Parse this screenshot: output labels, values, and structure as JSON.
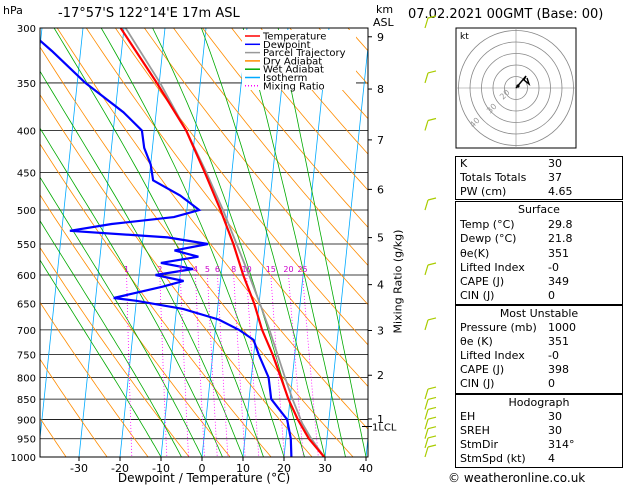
{
  "header": {
    "pressure_unit": "hPa",
    "location": "-17°57'S 122°14'E 17m ASL",
    "height_unit": "km",
    "height_ref": "ASL",
    "datetime": "07.02.2021 00GMT (Base: 00)"
  },
  "legend": [
    "Temperature",
    "Dewpoint",
    "Parcel Trajectory",
    "Dry Adiabat",
    "Wet Adiabat",
    "Isotherm",
    "Mixing Ratio"
  ],
  "legend_colors": [
    "#ff0000",
    "#0000ff",
    "#999999",
    "#ff8c00",
    "#00aa00",
    "#00aaff",
    "#ff00ff"
  ],
  "right_axis_label": "Mixing Ratio (g/kg)",
  "lcl_label": "1LCL",
  "watermark": "© weatheronline.co.uk",
  "chart_data": {
    "type": "line",
    "title": "",
    "xlabel": "Dewpoint / Temperature (°C)",
    "ylabel": "hPa",
    "x_ticks": [
      -30,
      -20,
      -10,
      0,
      10,
      20,
      30,
      40
    ],
    "pressure_ticks": [
      300,
      350,
      400,
      450,
      500,
      550,
      600,
      650,
      700,
      750,
      800,
      850,
      900,
      950,
      1000
    ],
    "height_ticks_km": [
      1,
      2,
      3,
      4,
      5,
      6,
      7,
      8,
      9
    ],
    "mixing_ratio_labels": [
      "1",
      "2",
      "3",
      "4",
      "5",
      "6",
      "8",
      "10",
      "15",
      "20",
      "25"
    ],
    "series": [
      {
        "name": "Temperature",
        "points": [
          [
            1000,
            29.8
          ],
          [
            950,
            25.6
          ],
          [
            900,
            22.4
          ],
          [
            850,
            19.6
          ],
          [
            800,
            17.2
          ],
          [
            750,
            14.6
          ],
          [
            700,
            11.4
          ],
          [
            650,
            8.8
          ],
          [
            600,
            5.4
          ],
          [
            550,
            2.2
          ],
          [
            500,
            -1.8
          ],
          [
            450,
            -6.6
          ],
          [
            400,
            -12.2
          ],
          [
            350,
            -20.6
          ],
          [
            300,
            -30.8
          ]
        ]
      },
      {
        "name": "Dewpoint",
        "points": [
          [
            1000,
            21.8
          ],
          [
            950,
            21.2
          ],
          [
            900,
            19.8
          ],
          [
            870,
            17.2
          ],
          [
            850,
            15.4
          ],
          [
            800,
            14.2
          ],
          [
            750,
            11.2
          ],
          [
            720,
            9.6
          ],
          [
            700,
            5.8
          ],
          [
            680,
            0.6
          ],
          [
            660,
            -8.4
          ],
          [
            645,
            -20
          ],
          [
            640,
            -25.6
          ],
          [
            620,
            -14
          ],
          [
            610,
            -9
          ],
          [
            600,
            -16
          ],
          [
            590,
            -7
          ],
          [
            580,
            -15
          ],
          [
            570,
            -6
          ],
          [
            560,
            -12
          ],
          [
            550,
            -4
          ],
          [
            540,
            -14
          ],
          [
            530,
            -38
          ],
          [
            520,
            -28
          ],
          [
            510,
            -13
          ],
          [
            500,
            -7
          ],
          [
            480,
            -12
          ],
          [
            460,
            -19
          ],
          [
            440,
            -20
          ],
          [
            420,
            -22
          ],
          [
            400,
            -23
          ],
          [
            380,
            -28
          ],
          [
            350,
            -38
          ],
          [
            320,
            -47
          ],
          [
            300,
            -54
          ]
        ]
      },
      {
        "name": "Parcel Trajectory",
        "points": [
          [
            1000,
            29.8
          ],
          [
            950,
            26.2
          ],
          [
            910,
            23.6
          ],
          [
            850,
            20.6
          ],
          [
            800,
            18.2
          ],
          [
            750,
            15.8
          ],
          [
            700,
            13.2
          ],
          [
            650,
            10.2
          ],
          [
            600,
            6.8
          ],
          [
            550,
            3.0
          ],
          [
            500,
            -1.2
          ],
          [
            450,
            -6.2
          ],
          [
            400,
            -12.2
          ],
          [
            350,
            -19.8
          ],
          [
            300,
            -29.6
          ]
        ]
      }
    ],
    "hodograph": {
      "rings": [
        "",
        "",
        "40",
        "30",
        "20"
      ],
      "label": "kt"
    }
  },
  "indices": [
    {
      "k": "K",
      "v": "30"
    },
    {
      "k": "Totals Totals",
      "v": "37"
    },
    {
      "k": "PW (cm)",
      "v": "4.65"
    }
  ],
  "surface": {
    "title": "Surface",
    "rows": [
      {
        "k": "Temp (°C)",
        "v": "29.8"
      },
      {
        "k": "Dewp (°C)",
        "v": "21.8"
      },
      {
        "k": "θe(K)",
        "v": "351"
      },
      {
        "k": "Lifted Index",
        "v": "-0"
      },
      {
        "k": "CAPE (J)",
        "v": "349"
      },
      {
        "k": "CIN (J)",
        "v": "0"
      }
    ]
  },
  "most_unstable": {
    "title": "Most Unstable",
    "rows": [
      {
        "k": "Pressure (mb)",
        "v": "1000"
      },
      {
        "k": "θe (K)",
        "v": "351"
      },
      {
        "k": "Lifted Index",
        "v": "-0"
      },
      {
        "k": "CAPE (J)",
        "v": "398"
      },
      {
        "k": "CIN (J)",
        "v": "0"
      }
    ]
  },
  "hodograph_table": {
    "title": "Hodograph",
    "rows": [
      {
        "k": "EH",
        "v": "30"
      },
      {
        "k": "SREH",
        "v": "30"
      },
      {
        "k": "StmDir",
        "v": "314°"
      },
      {
        "k": "StmSpd (kt)",
        "v": "4"
      }
    ]
  }
}
